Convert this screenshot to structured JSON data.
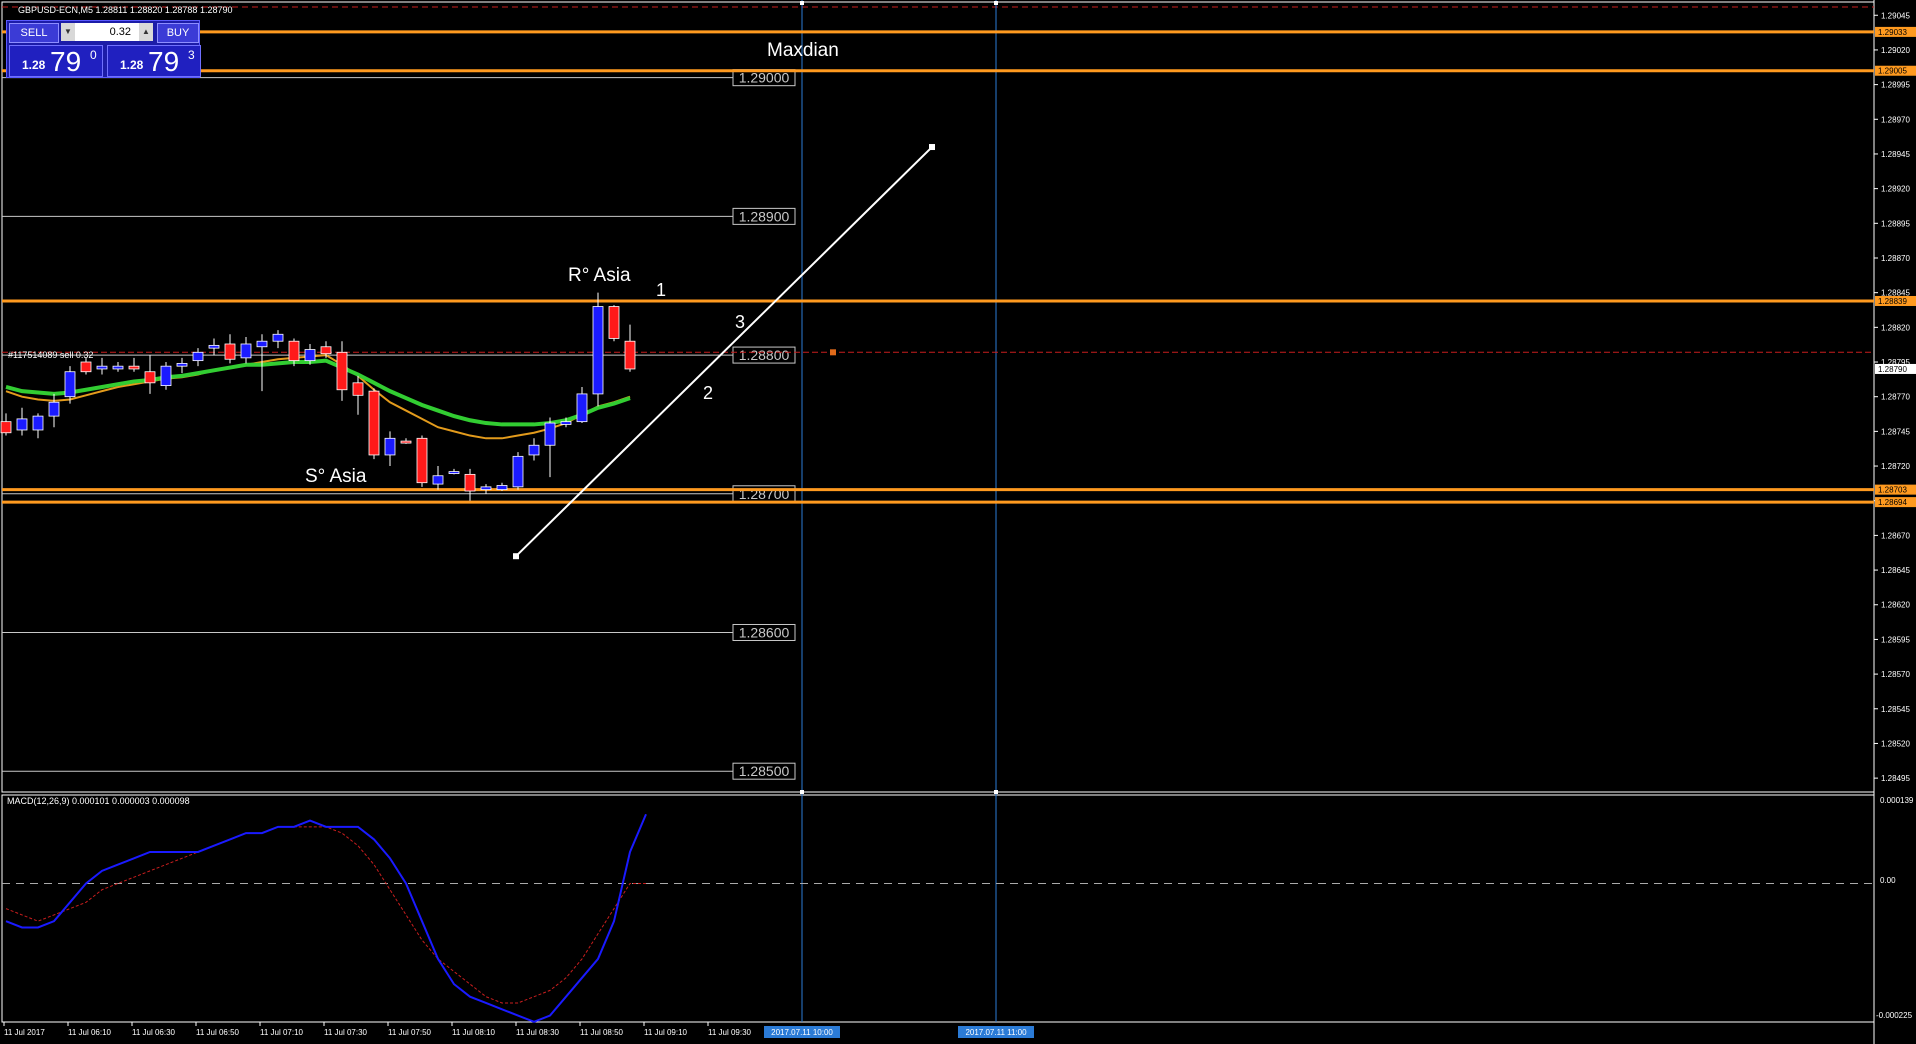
{
  "header": {
    "symbol_line": "GBPUSD-ECN,M5  1.28811 1.28820 1.28788 1.28790"
  },
  "trade_panel": {
    "sell_label": "SELL",
    "buy_label": "BUY",
    "lot_value": "0.32",
    "sell_prefix": "1.28",
    "sell_big": "79",
    "sell_sup": "0",
    "buy_prefix": "1.28",
    "buy_big": "79",
    "buy_sup": "3"
  },
  "order_label": "#117514089 sell 0.32",
  "annotations": {
    "maxdian": "Maxdian",
    "r_asia": "R° Asia",
    "s_asia": "S° Asia",
    "wave1": "1",
    "wave2": "2",
    "wave3": "3"
  },
  "macd": {
    "label": "MACD(12,26,9) 0.000101 0.000003 0.000098",
    "axis_top": "0.000139",
    "axis_zero": "0.00",
    "axis_bottom": "-0.000225"
  },
  "colors": {
    "bull": "#1a1aff",
    "bear": "#ff1a1a",
    "orange_line": "#ff9a1f",
    "green_ma": "#32cd32",
    "orange_ma": "#e39b1c",
    "macd_main": "#1a1aff",
    "macd_signal": "#c81e1e",
    "vline": "#2b7bd6"
  },
  "chart_data": {
    "type": "candlestick",
    "price_axis": [
      "1.29045",
      "1.29020",
      "1.28995",
      "1.28970",
      "1.28945",
      "1.28920",
      "1.28895",
      "1.28870",
      "1.28845",
      "1.28820",
      "1.28795",
      "1.28770",
      "1.28745",
      "1.28720",
      "1.28695",
      "1.28670",
      "1.28645",
      "1.28620",
      "1.28595",
      "1.28570",
      "1.28545",
      "1.28520",
      "1.28495"
    ],
    "price_range": [
      1.28485,
      1.29056
    ],
    "time_labels": [
      "11 Jul 2017",
      "11 Jul 06:10",
      "11 Jul 06:30",
      "11 Jul 06:50",
      "11 Jul 07:10",
      "11 Jul 07:30",
      "11 Jul 07:50",
      "11 Jul 08:10",
      "11 Jul 08:30",
      "11 Jul 08:50",
      "11 Jul 09:10",
      "11 Jul 09:30"
    ],
    "vline_labels": [
      "2017.07.11 10:00",
      "2017.07.11 11:00"
    ],
    "round_levels": [
      {
        "price": 1.29,
        "label": "1.29000"
      },
      {
        "price": 1.289,
        "label": "1.28900"
      },
      {
        "price": 1.288,
        "label": "1.28800"
      },
      {
        "price": 1.287,
        "label": "1.28700"
      },
      {
        "price": 1.286,
        "label": "1.28600"
      },
      {
        "price": 1.285,
        "label": "1.28500"
      }
    ],
    "orange_levels": [
      {
        "price": 1.29033,
        "label": "1.29033"
      },
      {
        "price": 1.29005,
        "label": "1.29005"
      },
      {
        "price": 1.28839,
        "label": "1.28839"
      },
      {
        "price": 1.28703,
        "label": "1.28703"
      },
      {
        "price": 1.28694,
        "label": "1.28694"
      }
    ],
    "current_price": {
      "price": 1.2879,
      "label": "1.28790"
    },
    "order_price": 1.28802,
    "candles": [
      {
        "o": 1.28752,
        "h": 1.28758,
        "l": 1.28742,
        "c": 1.28744
      },
      {
        "o": 1.28746,
        "h": 1.28762,
        "l": 1.28742,
        "c": 1.28754
      },
      {
        "o": 1.28746,
        "h": 1.28758,
        "l": 1.2874,
        "c": 1.28756
      },
      {
        "o": 1.28756,
        "h": 1.28772,
        "l": 1.28748,
        "c": 1.28766
      },
      {
        "o": 1.2877,
        "h": 1.28792,
        "l": 1.28765,
        "c": 1.28788
      },
      {
        "o": 1.28795,
        "h": 1.28798,
        "l": 1.28786,
        "c": 1.28788
      },
      {
        "o": 1.2879,
        "h": 1.28798,
        "l": 1.28786,
        "c": 1.28792
      },
      {
        "o": 1.2879,
        "h": 1.28795,
        "l": 1.28788,
        "c": 1.28792
      },
      {
        "o": 1.28792,
        "h": 1.28798,
        "l": 1.28788,
        "c": 1.2879
      },
      {
        "o": 1.28788,
        "h": 1.288,
        "l": 1.28772,
        "c": 1.2878
      },
      {
        "o": 1.28778,
        "h": 1.28795,
        "l": 1.28775,
        "c": 1.28792
      },
      {
        "o": 1.28792,
        "h": 1.28798,
        "l": 1.28787,
        "c": 1.28794
      },
      {
        "o": 1.28796,
        "h": 1.28805,
        "l": 1.28792,
        "c": 1.28802
      },
      {
        "o": 1.28805,
        "h": 1.28812,
        "l": 1.288,
        "c": 1.28807
      },
      {
        "o": 1.28808,
        "h": 1.28815,
        "l": 1.28794,
        "c": 1.28797
      },
      {
        "o": 1.28798,
        "h": 1.28813,
        "l": 1.28794,
        "c": 1.28808
      },
      {
        "o": 1.28806,
        "h": 1.28815,
        "l": 1.28774,
        "c": 1.2881
      },
      {
        "o": 1.2881,
        "h": 1.28818,
        "l": 1.28805,
        "c": 1.28815
      },
      {
        "o": 1.2881,
        "h": 1.28812,
        "l": 1.28792,
        "c": 1.28796
      },
      {
        "o": 1.28796,
        "h": 1.28808,
        "l": 1.28793,
        "c": 1.28804
      },
      {
        "o": 1.28806,
        "h": 1.2881,
        "l": 1.28798,
        "c": 1.28801
      },
      {
        "o": 1.28802,
        "h": 1.2881,
        "l": 1.28767,
        "c": 1.28775
      },
      {
        "o": 1.2878,
        "h": 1.28785,
        "l": 1.28757,
        "c": 1.28771
      },
      {
        "o": 1.28774,
        "h": 1.28776,
        "l": 1.28725,
        "c": 1.28728
      },
      {
        "o": 1.28728,
        "h": 1.28745,
        "l": 1.2872,
        "c": 1.2874
      },
      {
        "o": 1.28738,
        "h": 1.2874,
        "l": 1.28736,
        "c": 1.28737
      },
      {
        "o": 1.2874,
        "h": 1.28742,
        "l": 1.28705,
        "c": 1.28708
      },
      {
        "o": 1.28707,
        "h": 1.2872,
        "l": 1.28703,
        "c": 1.28713
      },
      {
        "o": 1.28716,
        "h": 1.28718,
        "l": 1.28714,
        "c": 1.28716
      },
      {
        "o": 1.28714,
        "h": 1.28718,
        "l": 1.28695,
        "c": 1.28702
      },
      {
        "o": 1.28703,
        "h": 1.28707,
        "l": 1.287,
        "c": 1.28705
      },
      {
        "o": 1.28703,
        "h": 1.28708,
        "l": 1.28702,
        "c": 1.28706
      },
      {
        "o": 1.28705,
        "h": 1.2873,
        "l": 1.28703,
        "c": 1.28727
      },
      {
        "o": 1.28728,
        "h": 1.2874,
        "l": 1.28724,
        "c": 1.28735
      },
      {
        "o": 1.28735,
        "h": 1.28755,
        "l": 1.28712,
        "c": 1.28751
      },
      {
        "o": 1.2875,
        "h": 1.28755,
        "l": 1.28748,
        "c": 1.28752
      },
      {
        "o": 1.28752,
        "h": 1.28777,
        "l": 1.28751,
        "c": 1.28772
      },
      {
        "o": 1.28772,
        "h": 1.28845,
        "l": 1.28763,
        "c": 1.28835
      },
      {
        "o": 1.28835,
        "h": 1.28836,
        "l": 1.2881,
        "c": 1.28812
      },
      {
        "o": 1.2881,
        "h": 1.28822,
        "l": 1.28788,
        "c": 1.2879
      }
    ],
    "ma_green": [
      1.28777,
      1.28774,
      1.28773,
      1.28772,
      1.28773,
      1.28775,
      1.28777,
      1.28779,
      1.28781,
      1.28782,
      1.28784,
      1.28785,
      1.28787,
      1.28789,
      1.28791,
      1.28793,
      1.28793,
      1.28794,
      1.28795,
      1.28795,
      1.28796,
      1.28791,
      1.28786,
      1.2878,
      1.28774,
      1.28769,
      1.28764,
      1.2876,
      1.28756,
      1.28753,
      1.28751,
      1.2875,
      1.2875,
      1.2875,
      1.28751,
      1.28753,
      1.28757,
      1.28762,
      1.28765,
      1.28769
    ],
    "ma_orange": [
      1.28774,
      1.2877,
      1.28768,
      1.28767,
      1.28768,
      1.28771,
      1.28774,
      1.28777,
      1.28779,
      1.28781,
      1.28783,
      1.28784,
      1.28786,
      1.28789,
      1.28791,
      1.28793,
      1.28795,
      1.28797,
      1.28798,
      1.28799,
      1.288,
      1.28793,
      1.28785,
      1.28775,
      1.28766,
      1.2876,
      1.28754,
      1.28748,
      1.28745,
      1.28742,
      1.2874,
      1.2874,
      1.28742,
      1.28744,
      1.28747,
      1.28751,
      1.28757,
      1.28763,
      1.28766,
      1.2877
    ],
    "macd_range": [
      -0.000225,
      0.000139
    ],
    "macd_main": [
      -6e-05,
      -7e-05,
      -7e-05,
      -6e-05,
      -3e-05,
      0.0,
      2e-05,
      3e-05,
      4e-05,
      5e-05,
      5e-05,
      5e-05,
      5e-05,
      6e-05,
      7e-05,
      8e-05,
      8e-05,
      9e-05,
      9e-05,
      0.0001,
      9e-05,
      9e-05,
      9e-05,
      7e-05,
      4e-05,
      0.0,
      -6e-05,
      -0.00012,
      -0.00016,
      -0.00018,
      -0.00019,
      -0.0002,
      -0.00021,
      -0.00022,
      -0.00021,
      -0.00018,
      -0.00015,
      -0.00012,
      -6e-05,
      5e-05,
      0.00011
    ],
    "macd_signal": [
      -4e-05,
      -5e-05,
      -6e-05,
      -5e-05,
      -4e-05,
      -3e-05,
      -1e-05,
      0.0,
      1e-05,
      2e-05,
      3e-05,
      4e-05,
      5e-05,
      6e-05,
      7e-05,
      8e-05,
      8e-05,
      9e-05,
      9e-05,
      9e-05,
      9e-05,
      8e-05,
      6e-05,
      3e-05,
      -1e-05,
      -5e-05,
      -9e-05,
      -0.00012,
      -0.00014,
      -0.00016,
      -0.00018,
      -0.00019,
      -0.00019,
      -0.00018,
      -0.00017,
      -0.00015,
      -0.00012,
      -8e-05,
      -4e-05,
      0.0,
      0.0
    ],
    "trendline": {
      "from": 1.28655,
      "to": 1.2895
    },
    "grid": false
  }
}
